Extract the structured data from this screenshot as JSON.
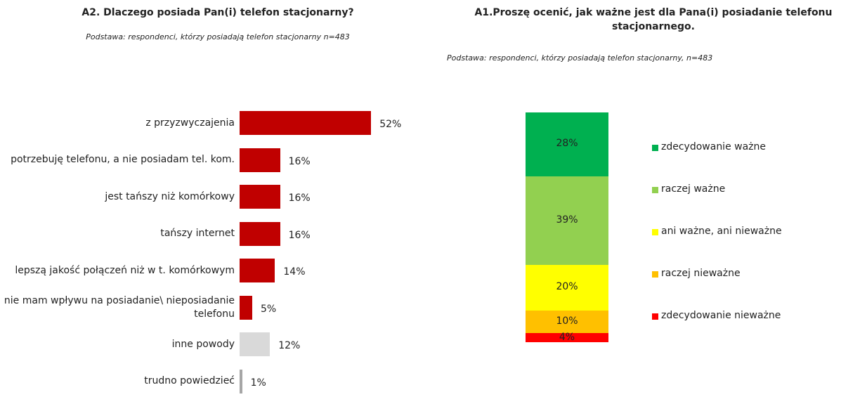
{
  "chart_data": [
    {
      "type": "hbar",
      "title": "A2. Dlaczego posiada Pan(i) telefon stacjonarny?",
      "subtitle": "Podstawa: respondenci, którzy posiadają telefon stacjonarny n=483",
      "categories": [
        "z przyzwyczajenia",
        "potrzebuję telefonu, a nie posiadam tel. kom.",
        "jest tańszy niż komórkowy",
        "tańszy internet",
        "lepszą jakość połączeń niż w t. komórkowym",
        "nie mam wpływu na posiadanie\\ nieposiadanie telefonu",
        "inne powody",
        "trudno powiedzieć"
      ],
      "values": [
        52,
        16,
        16,
        16,
        14,
        5,
        12,
        1
      ],
      "value_labels": [
        "52%",
        "16%",
        "16%",
        "16%",
        "14%",
        "5%",
        "12%",
        "1%"
      ],
      "colors": [
        "#c00000",
        "#c00000",
        "#c00000",
        "#c00000",
        "#c00000",
        "#c00000",
        "#d9d9d9",
        "#a6a6a6"
      ]
    },
    {
      "type": "stacked_bar",
      "title": "A1.Proszę ocenić, jak ważne jest dla Pana(i) posiadanie telefonu stacjonarnego.",
      "subtitle": "Podstawa: respondenci, którzy posiadają telefon stacjonarny, n=483",
      "series": [
        {
          "name": "zdecydowanie ważne",
          "color": "#00b050",
          "values": [
            28
          ],
          "value_labels": [
            "28%"
          ]
        },
        {
          "name": "raczej ważne",
          "color": "#92d050",
          "values": [
            39
          ],
          "value_labels": [
            "39%"
          ]
        },
        {
          "name": "ani ważne, ani nieważne",
          "color": "#ffff00",
          "values": [
            20
          ],
          "value_labels": [
            "20%"
          ]
        },
        {
          "name": "raczej nieważne",
          "color": "#ffc000",
          "values": [
            10
          ],
          "value_labels": [
            "10%"
          ]
        },
        {
          "name": "zdecydowanie nieważne",
          "color": "#ff0000",
          "values": [
            4
          ],
          "value_labels": [
            "4%"
          ]
        }
      ],
      "legend": "right"
    }
  ]
}
